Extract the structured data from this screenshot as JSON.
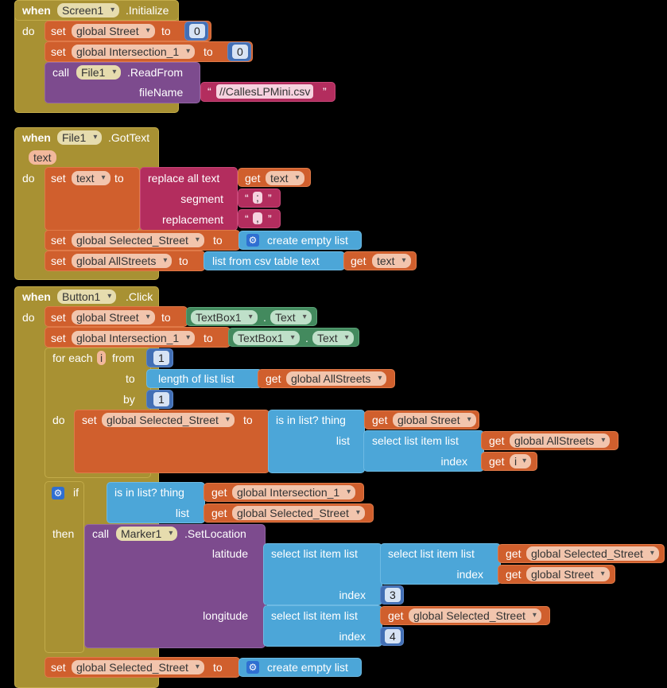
{
  "screen_init": {
    "when": "when",
    "component": "Screen1",
    "event": ".Initialize",
    "do": "do",
    "set1": {
      "set": "set",
      "var": "global Street",
      "to": "to",
      "value": "0"
    },
    "set2": {
      "set": "set",
      "var": "global Intersection_1",
      "to": "to",
      "value": "0"
    },
    "call": {
      "call": "call",
      "component": "File1",
      "method": ".ReadFrom",
      "param": "fileName",
      "value": "//CallesLPMini.csv"
    }
  },
  "file_gottext": {
    "when": "when",
    "component": "File1",
    "event": ".GotText",
    "param": "text",
    "do": "do",
    "set_text": {
      "set": "set",
      "var": "text",
      "to": "to",
      "replace": "replace all text",
      "get": "get",
      "get_var": "text",
      "segment": "segment",
      "segment_val": ";",
      "replacement": "replacement",
      "replacement_val": ","
    },
    "set_sel": {
      "set": "set",
      "var": "global Selected_Street",
      "to": "to",
      "create": "create empty list"
    },
    "set_all": {
      "set": "set",
      "var": "global AllStreets",
      "to": "to",
      "csv": "list from csv table  text",
      "get": "get",
      "get_var": "text"
    }
  },
  "button_click": {
    "when": "when",
    "component": "Button1",
    "event": ".Click",
    "do": "do",
    "set_street": {
      "set": "set",
      "var": "global Street",
      "to": "to",
      "comp": "TextBox1",
      "dot": ".",
      "prop": "Text"
    },
    "set_inter": {
      "set": "set",
      "var": "global Intersection_1",
      "to": "to",
      "comp": "TextBox1",
      "dot": ".",
      "prop": "Text"
    },
    "foreach": {
      "for_each": "for each",
      "var": "i",
      "from": "from",
      "from_val": "1",
      "to": "to",
      "length": "length of list  list",
      "get": "get",
      "get_var": "global AllStreets",
      "by": "by",
      "by_val": "1",
      "do": "do",
      "inner": {
        "set": "set",
        "var": "global Selected_Street",
        "to": "to",
        "is_in_list": "is in list? thing",
        "get1": "get",
        "get1_var": "global Street",
        "list": "list",
        "select": "select list item  list",
        "get2": "get",
        "get2_var": "global AllStreets",
        "index": "index",
        "get3": "get",
        "get3_var": "i"
      }
    },
    "if": {
      "if": "if",
      "is_in_list": "is in list? thing",
      "get1": "get",
      "get1_var": "global Intersection_1",
      "list": "list",
      "get2": "get",
      "get2_var": "global Selected_Street",
      "then": "then",
      "call": "call",
      "component": "Marker1",
      "method": ".SetLocation",
      "latitude": "latitude",
      "select1": "select list item  list",
      "select2": "select list item  list",
      "get3": "get",
      "get3_var": "global Selected_Street",
      "index": "index",
      "get4": "get",
      "get4_var": "global Street",
      "index_val1": "3",
      "longitude": "longitude",
      "select3": "select list item  list",
      "get5": "get",
      "get5_var": "global Selected_Street",
      "index_val2": "4"
    },
    "set_final": {
      "set": "set",
      "var": "global Selected_Street",
      "to": "to",
      "create": "create empty list"
    }
  },
  "colors": {
    "event": "#a89133",
    "variable": "#d05f2d",
    "text": "#b32d5e",
    "component": "#7d4b8e",
    "list": "#4ca6d8",
    "math": "#426fb5",
    "ui": "#438a5e"
  }
}
